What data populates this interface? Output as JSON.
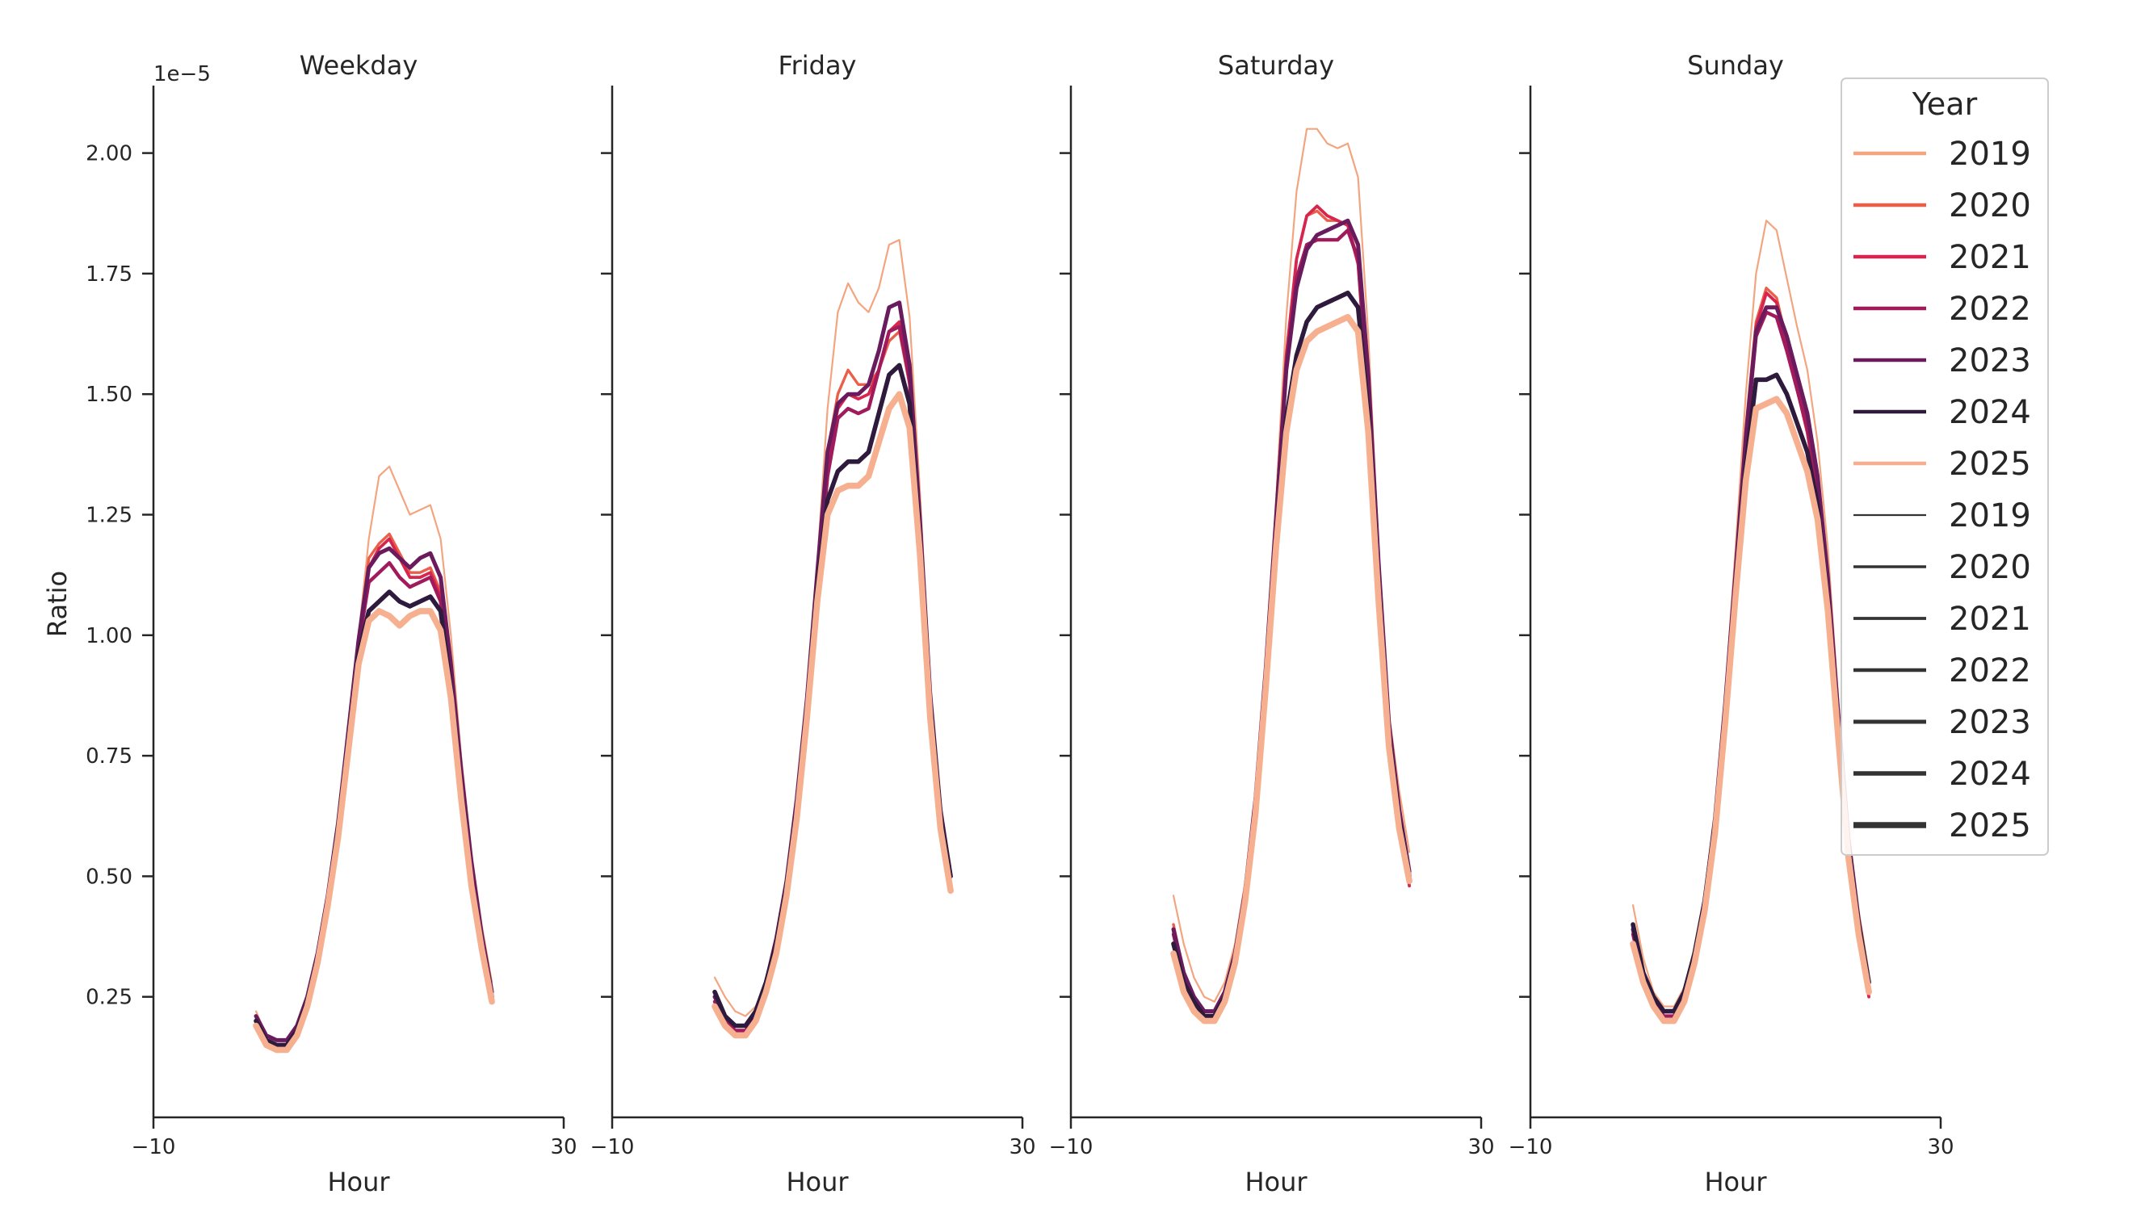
{
  "chart_data": {
    "type": "line",
    "ylabel": "Ratio",
    "y_offset_label": "1e−5",
    "ylim": [
      0.0,
      2.14
    ],
    "yticks": [
      0.25,
      0.5,
      0.75,
      1.0,
      1.25,
      1.5,
      1.75,
      2.0
    ],
    "ytick_labels": [
      "0.25",
      "0.50",
      "0.75",
      "1.00",
      "1.25",
      "1.50",
      "1.75",
      "2.00"
    ],
    "xlabel": "Hour",
    "xlim": [
      -10,
      30
    ],
    "xticks": [
      -10,
      30
    ],
    "xtick_labels": [
      "−10",
      "30"
    ],
    "grid": false,
    "legend": {
      "title": "Year",
      "placement": "top-right",
      "hue_entries": [
        "2019",
        "2020",
        "2021",
        "2022",
        "2023",
        "2024",
        "2025"
      ],
      "size_entries": [
        "2019",
        "2020",
        "2021",
        "2022",
        "2023",
        "2024",
        "2025"
      ]
    },
    "colors": {
      "2019": "#f3a580",
      "2020": "#ea5f49",
      "2021": "#d6264e",
      "2022": "#a11a5b",
      "2023": "#6a1b5e",
      "2024": "#2e1a3c",
      "2025": "#f7b08f"
    },
    "x": [
      0,
      1,
      2,
      3,
      4,
      5,
      6,
      7,
      8,
      9,
      10,
      11,
      12,
      13,
      14,
      15,
      16,
      17,
      18,
      19,
      20,
      21,
      22,
      23
    ],
    "panels": [
      {
        "title": "Weekday",
        "series": [
          {
            "name": "2019",
            "values": [
              0.22,
              0.17,
              0.15,
              0.15,
              0.18,
              0.24,
              0.33,
              0.45,
              0.6,
              0.8,
              1.0,
              1.2,
              1.33,
              1.35,
              1.3,
              1.25,
              1.26,
              1.27,
              1.2,
              1.0,
              0.75,
              0.55,
              0.4,
              0.28
            ]
          },
          {
            "name": "2020",
            "values": [
              0.21,
              0.16,
              0.15,
              0.15,
              0.18,
              0.24,
              0.33,
              0.45,
              0.6,
              0.79,
              0.99,
              1.16,
              1.19,
              1.21,
              1.17,
              1.13,
              1.13,
              1.14,
              1.09,
              0.92,
              0.7,
              0.51,
              0.37,
              0.26
            ]
          },
          {
            "name": "2021",
            "values": [
              0.2,
              0.16,
              0.15,
              0.15,
              0.18,
              0.24,
              0.33,
              0.45,
              0.6,
              0.79,
              0.98,
              1.14,
              1.18,
              1.2,
              1.16,
              1.12,
              1.12,
              1.13,
              1.08,
              0.91,
              0.69,
              0.5,
              0.36,
              0.24
            ]
          },
          {
            "name": "2022",
            "values": [
              0.2,
              0.16,
              0.15,
              0.15,
              0.18,
              0.24,
              0.33,
              0.45,
              0.6,
              0.79,
              0.98,
              1.11,
              1.13,
              1.15,
              1.12,
              1.1,
              1.11,
              1.12,
              1.07,
              0.9,
              0.69,
              0.5,
              0.36,
              0.25
            ]
          },
          {
            "name": "2023",
            "values": [
              0.21,
              0.17,
              0.16,
              0.16,
              0.19,
              0.25,
              0.34,
              0.46,
              0.61,
              0.8,
              0.99,
              1.14,
              1.17,
              1.18,
              1.16,
              1.14,
              1.16,
              1.17,
              1.12,
              0.94,
              0.72,
              0.53,
              0.38,
              0.26
            ]
          },
          {
            "name": "2024",
            "values": [
              0.2,
              0.16,
              0.15,
              0.15,
              0.18,
              0.24,
              0.33,
              0.45,
              0.6,
              0.78,
              0.96,
              1.05,
              1.07,
              1.09,
              1.07,
              1.06,
              1.07,
              1.08,
              1.05,
              0.89,
              0.68,
              0.49,
              0.36,
              0.25
            ]
          },
          {
            "name": "2025",
            "values": [
              0.19,
              0.15,
              0.14,
              0.14,
              0.17,
              0.23,
              0.32,
              0.44,
              0.58,
              0.76,
              0.94,
              1.03,
              1.05,
              1.04,
              1.02,
              1.04,
              1.05,
              1.05,
              1.01,
              0.87,
              0.66,
              0.48,
              0.35,
              0.24
            ]
          }
        ]
      },
      {
        "title": "Friday",
        "series": [
          {
            "name": "2019",
            "values": [
              0.29,
              0.25,
              0.22,
              0.21,
              0.23,
              0.28,
              0.37,
              0.5,
              0.66,
              0.88,
              1.15,
              1.47,
              1.67,
              1.73,
              1.69,
              1.67,
              1.72,
              1.81,
              1.82,
              1.66,
              1.3,
              0.9,
              0.65,
              0.52
            ]
          },
          {
            "name": "2020",
            "values": [
              0.24,
              0.2,
              0.18,
              0.18,
              0.21,
              0.27,
              0.36,
              0.48,
              0.65,
              0.86,
              1.12,
              1.38,
              1.5,
              1.55,
              1.52,
              1.52,
              1.55,
              1.61,
              1.63,
              1.52,
              1.22,
              0.86,
              0.62,
              0.48
            ]
          },
          {
            "name": "2021",
            "values": [
              0.23,
              0.19,
              0.17,
              0.17,
              0.2,
              0.26,
              0.35,
              0.47,
              0.64,
              0.85,
              1.11,
              1.36,
              1.47,
              1.5,
              1.49,
              1.5,
              1.55,
              1.63,
              1.65,
              1.52,
              1.21,
              0.86,
              0.62,
              0.47
            ]
          },
          {
            "name": "2022",
            "values": [
              0.24,
              0.2,
              0.18,
              0.18,
              0.21,
              0.27,
              0.36,
              0.48,
              0.64,
              0.85,
              1.1,
              1.33,
              1.45,
              1.47,
              1.46,
              1.47,
              1.55,
              1.63,
              1.64,
              1.53,
              1.22,
              0.86,
              0.62,
              0.48
            ]
          },
          {
            "name": "2023",
            "values": [
              0.25,
              0.21,
              0.19,
              0.19,
              0.22,
              0.28,
              0.37,
              0.49,
              0.66,
              0.87,
              1.13,
              1.38,
              1.48,
              1.5,
              1.5,
              1.52,
              1.59,
              1.68,
              1.69,
              1.56,
              1.24,
              0.88,
              0.64,
              0.5
            ]
          },
          {
            "name": "2024",
            "values": [
              0.26,
              0.21,
              0.19,
              0.19,
              0.22,
              0.28,
              0.36,
              0.48,
              0.64,
              0.85,
              1.1,
              1.28,
              1.34,
              1.36,
              1.36,
              1.38,
              1.46,
              1.54,
              1.56,
              1.48,
              1.2,
              0.86,
              0.63,
              0.5
            ]
          },
          {
            "name": "2025",
            "values": [
              0.23,
              0.19,
              0.17,
              0.17,
              0.2,
              0.26,
              0.34,
              0.46,
              0.62,
              0.83,
              1.07,
              1.25,
              1.3,
              1.31,
              1.31,
              1.33,
              1.4,
              1.47,
              1.5,
              1.43,
              1.17,
              0.83,
              0.6,
              0.47
            ]
          }
        ]
      },
      {
        "title": "Saturday",
        "series": [
          {
            "name": "2019",
            "values": [
              0.46,
              0.36,
              0.29,
              0.25,
              0.24,
              0.28,
              0.36,
              0.49,
              0.68,
              0.95,
              1.28,
              1.66,
              1.92,
              2.05,
              2.05,
              2.02,
              2.01,
              2.02,
              1.95,
              1.62,
              1.18,
              0.84,
              0.68,
              0.55
            ]
          },
          {
            "name": "2020",
            "values": [
              0.4,
              0.3,
              0.25,
              0.22,
              0.22,
              0.26,
              0.34,
              0.47,
              0.66,
              0.93,
              1.25,
              1.58,
              1.78,
              1.87,
              1.88,
              1.86,
              1.86,
              1.85,
              1.78,
              1.5,
              1.12,
              0.8,
              0.64,
              0.5
            ]
          },
          {
            "name": "2021",
            "values": [
              0.38,
              0.29,
              0.24,
              0.22,
              0.22,
              0.26,
              0.34,
              0.47,
              0.66,
              0.93,
              1.25,
              1.58,
              1.78,
              1.87,
              1.89,
              1.87,
              1.86,
              1.85,
              1.77,
              1.48,
              1.1,
              0.79,
              0.62,
              0.48
            ]
          },
          {
            "name": "2022",
            "values": [
              0.38,
              0.29,
              0.24,
              0.22,
              0.22,
              0.26,
              0.34,
              0.47,
              0.66,
              0.93,
              1.24,
              1.56,
              1.74,
              1.81,
              1.82,
              1.82,
              1.82,
              1.84,
              1.78,
              1.5,
              1.12,
              0.8,
              0.62,
              0.49
            ]
          },
          {
            "name": "2023",
            "values": [
              0.39,
              0.3,
              0.25,
              0.22,
              0.22,
              0.26,
              0.34,
              0.47,
              0.66,
              0.93,
              1.24,
              1.55,
              1.72,
              1.8,
              1.83,
              1.84,
              1.85,
              1.86,
              1.81,
              1.54,
              1.15,
              0.82,
              0.64,
              0.51
            ]
          },
          {
            "name": "2024",
            "values": [
              0.36,
              0.28,
              0.24,
              0.21,
              0.21,
              0.25,
              0.33,
              0.46,
              0.64,
              0.9,
              1.2,
              1.45,
              1.58,
              1.65,
              1.68,
              1.69,
              1.7,
              1.71,
              1.68,
              1.46,
              1.1,
              0.79,
              0.62,
              0.5
            ]
          },
          {
            "name": "2025",
            "values": [
              0.34,
              0.26,
              0.22,
              0.2,
              0.2,
              0.24,
              0.32,
              0.45,
              0.63,
              0.89,
              1.18,
              1.42,
              1.55,
              1.61,
              1.63,
              1.64,
              1.65,
              1.66,
              1.63,
              1.42,
              1.07,
              0.77,
              0.6,
              0.49
            ]
          }
        ]
      },
      {
        "title": "Sunday",
        "series": [
          {
            "name": "2019",
            "values": [
              0.44,
              0.33,
              0.26,
              0.23,
              0.23,
              0.27,
              0.35,
              0.46,
              0.63,
              0.88,
              1.18,
              1.5,
              1.75,
              1.86,
              1.84,
              1.74,
              1.64,
              1.55,
              1.4,
              1.18,
              0.87,
              0.6,
              0.43,
              0.3
            ]
          },
          {
            "name": "2020",
            "values": [
              0.4,
              0.3,
              0.25,
              0.22,
              0.22,
              0.26,
              0.34,
              0.45,
              0.62,
              0.86,
              1.14,
              1.43,
              1.65,
              1.72,
              1.7,
              1.61,
              1.52,
              1.44,
              1.31,
              1.1,
              0.82,
              0.56,
              0.4,
              0.27
            ]
          },
          {
            "name": "2021",
            "values": [
              0.38,
              0.29,
              0.24,
              0.21,
              0.21,
              0.25,
              0.33,
              0.44,
              0.61,
              0.85,
              1.13,
              1.42,
              1.64,
              1.71,
              1.69,
              1.6,
              1.51,
              1.42,
              1.29,
              1.08,
              0.8,
              0.55,
              0.38,
              0.25
            ]
          },
          {
            "name": "2022",
            "values": [
              0.38,
              0.29,
              0.24,
              0.21,
              0.21,
              0.25,
              0.33,
              0.44,
              0.61,
              0.85,
              1.12,
              1.4,
              1.62,
              1.67,
              1.66,
              1.59,
              1.51,
              1.43,
              1.3,
              1.09,
              0.81,
              0.56,
              0.39,
              0.26
            ]
          },
          {
            "name": "2023",
            "values": [
              0.39,
              0.3,
              0.25,
              0.22,
              0.22,
              0.26,
              0.34,
              0.45,
              0.62,
              0.86,
              1.13,
              1.41,
              1.63,
              1.68,
              1.68,
              1.62,
              1.54,
              1.46,
              1.33,
              1.12,
              0.84,
              0.58,
              0.41,
              0.28
            ]
          },
          {
            "name": "2024",
            "values": [
              0.4,
              0.3,
              0.25,
              0.22,
              0.22,
              0.26,
              0.34,
              0.45,
              0.61,
              0.84,
              1.1,
              1.35,
              1.53,
              1.53,
              1.54,
              1.5,
              1.44,
              1.38,
              1.27,
              1.07,
              0.81,
              0.56,
              0.4,
              0.28
            ]
          },
          {
            "name": "2025",
            "values": [
              0.36,
              0.28,
              0.23,
              0.2,
              0.2,
              0.24,
              0.32,
              0.43,
              0.59,
              0.82,
              1.08,
              1.32,
              1.47,
              1.48,
              1.49,
              1.46,
              1.4,
              1.34,
              1.24,
              1.05,
              0.79,
              0.54,
              0.38,
              0.26
            ]
          }
        ]
      }
    ]
  }
}
